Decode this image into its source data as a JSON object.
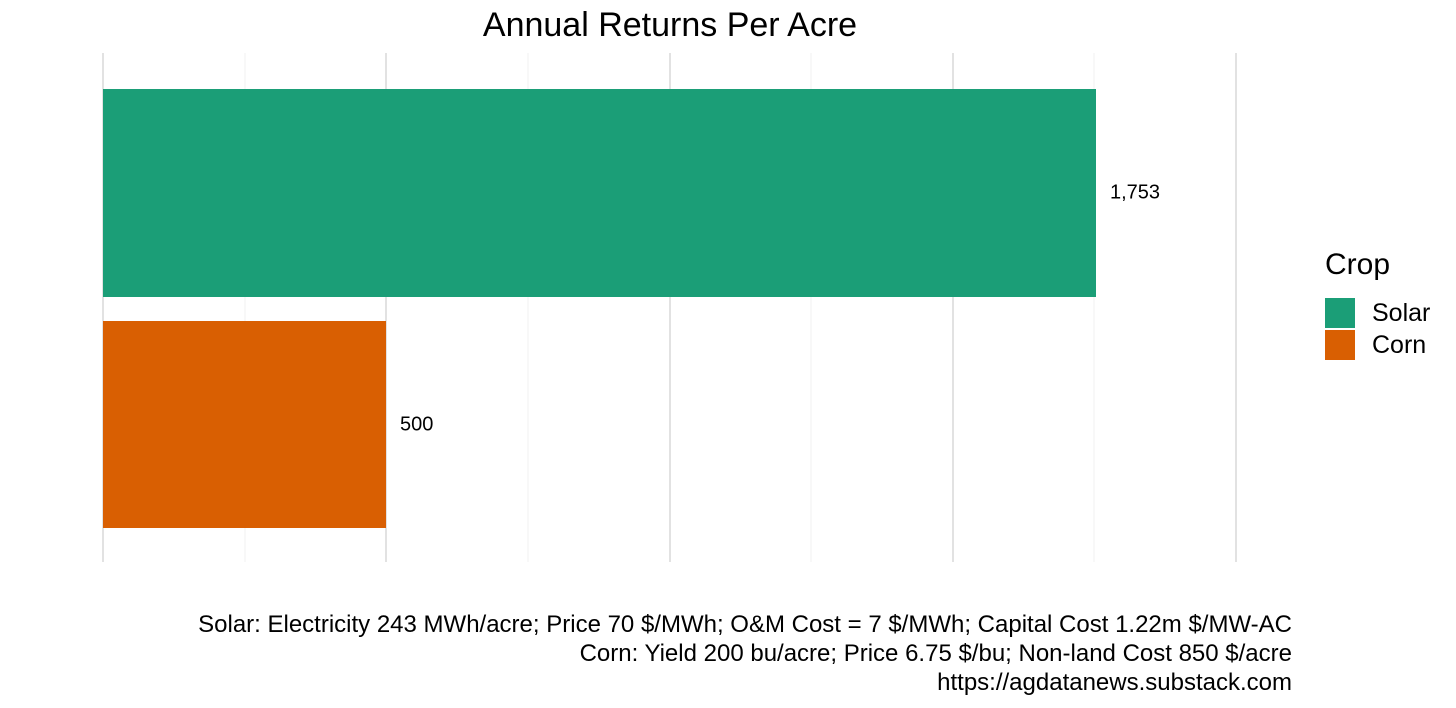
{
  "chart_data": {
    "type": "bar",
    "orientation": "horizontal",
    "title": "Annual Returns Per Acre",
    "categories": [
      "Solar",
      "Corn"
    ],
    "values": [
      1753,
      500
    ],
    "value_labels": [
      "1,753",
      "500"
    ],
    "bar_colors": [
      "#1B9E77",
      "#D95F02"
    ],
    "xlabel": "",
    "ylabel": "",
    "xlim": [
      0,
      2000
    ],
    "gridline_step_minor": 250,
    "gridline_step_major": 500,
    "x_tick_labels_shown": false,
    "y_tick_labels_shown": false,
    "grid": true,
    "legend": {
      "title": "Crop",
      "position": "right",
      "items": [
        {
          "label": "Solar",
          "color": "#1B9E77"
        },
        {
          "label": "Corn",
          "color": "#D95F02"
        }
      ]
    },
    "caption_lines": [
      "Solar: Electricity 243 MWh/acre; Price 70 $/MWh; O&M Cost = 7 $/MWh; Capital Cost 1.22m $/MW-AC",
      "Corn: Yield 200 bu/acre; Price 6.75 $/bu; Non-land Cost 850 $/acre",
      "https://agdatanews.substack.com"
    ]
  },
  "colors": {
    "background": "#ffffff",
    "gridline_major": "#e2e2e2",
    "gridline_minor": "#f0f0f0",
    "text": "#000000"
  }
}
